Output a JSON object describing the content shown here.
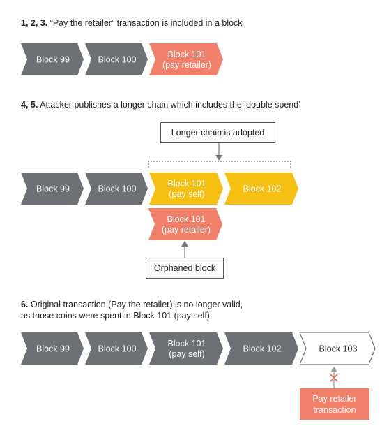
{
  "section1": {
    "num": "1, 2, 3.",
    "text": "“Pay the retailer” transaction is included in a block"
  },
  "section2": {
    "num": "4, 5.",
    "text": "Attacker publishes a longer chain which includes the ‘double spend’"
  },
  "section3": {
    "num": "6.",
    "line1": "Original transaction (Pay the retailer) is no longer valid,",
    "line2": "as those coins were spent in Block 101 (pay self)"
  },
  "labels": {
    "adopted": "Longer chain is adopted",
    "orphaned": "Orphaned block",
    "tx_line1": "Pay retailer",
    "tx_line2": "transaction"
  },
  "colors": {
    "gray": "#6D7175",
    "salmon": "#F0806A",
    "yellow": "#F5C011",
    "outline": "#555555",
    "cross": "#E8705A"
  },
  "rows": [
    {
      "id": "row1",
      "blocks": [
        {
          "lines": [
            "Block 99"
          ],
          "kind": "gray"
        },
        {
          "lines": [
            "Block 100"
          ],
          "kind": "gray"
        },
        {
          "lines": [
            "Block 101",
            "(pay retailer)"
          ],
          "kind": "salmon"
        }
      ]
    },
    {
      "id": "row2",
      "blocks": [
        {
          "lines": [
            "Block 99"
          ],
          "kind": "gray"
        },
        {
          "lines": [
            "Block 100"
          ],
          "kind": "gray"
        },
        {
          "lines": [
            "Block 101",
            "(pay self)"
          ],
          "kind": "yellow"
        },
        {
          "lines": [
            "Block 102"
          ],
          "kind": "yellow"
        }
      ]
    },
    {
      "id": "row2b",
      "blocks": [
        {
          "lines": [
            "Block 101",
            "(pay retailer)"
          ],
          "kind": "salmon"
        }
      ]
    },
    {
      "id": "row3",
      "blocks": [
        {
          "lines": [
            "Block 99"
          ],
          "kind": "gray"
        },
        {
          "lines": [
            "Block 100"
          ],
          "kind": "gray"
        },
        {
          "lines": [
            "Block 101",
            "(pay self)"
          ],
          "kind": "gray"
        },
        {
          "lines": [
            "Block 102"
          ],
          "kind": "gray"
        },
        {
          "lines": [
            "Block 103"
          ],
          "kind": "outline"
        }
      ]
    }
  ]
}
